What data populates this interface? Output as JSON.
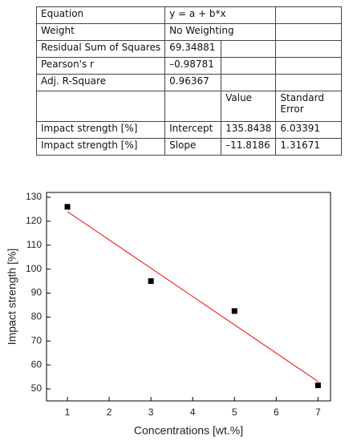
{
  "table": {
    "rows": [
      [
        "Equation",
        "y = a + b*x"
      ],
      [
        "Weight",
        "No Weighting"
      ],
      [
        "Residual Sum of Squares",
        "69.34881"
      ],
      [
        "Pearson's r",
        "–0.98781"
      ],
      [
        "Adj. R-Square",
        "0.96367"
      ],
      [
        "Value",
        "Standard Error"
      ],
      [
        "Impact strength [%]",
        "Intercept",
        "135.8438",
        "6.03391"
      ],
      [
        "Impact strength [%]",
        "Slope",
        "–11.8186",
        "1.31671"
      ]
    ]
  },
  "chart_data": {
    "type": "scatter",
    "x_label": "Concentrations [wt.%]",
    "y_label": "Impact strength [%]",
    "points": {
      "x": [
        1,
        3,
        5,
        7
      ],
      "values": [
        126,
        95,
        82.5,
        51.5
      ],
      "color": "#000000"
    },
    "fit": {
      "x": [
        1,
        7
      ],
      "values": [
        124.0252,
        53.1136
      ],
      "color": "#e8302a"
    },
    "xlim": [
      0.5,
      7.3
    ],
    "ylim": [
      45,
      132
    ],
    "xticks": [
      1,
      2,
      3,
      4,
      5,
      6,
      7
    ],
    "yticks": [
      50,
      60,
      70,
      80,
      90,
      100,
      110,
      120,
      130
    ]
  }
}
